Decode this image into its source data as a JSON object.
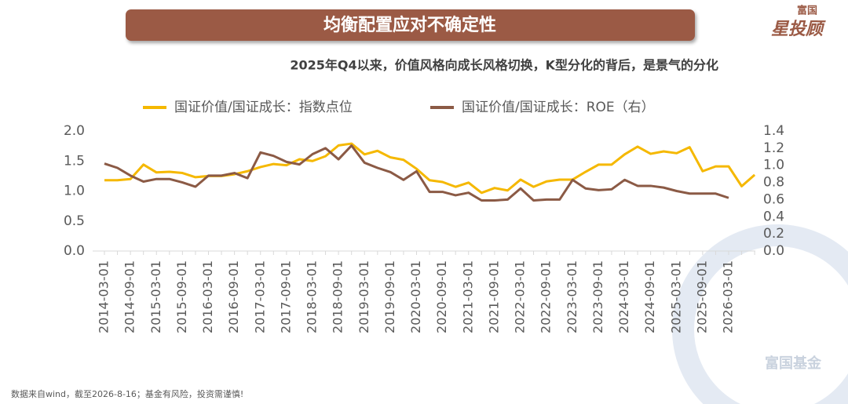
{
  "header": {
    "title": "均衡配置应对不确定性",
    "logo_top": "富国",
    "logo_main": "星投顾"
  },
  "chart_data": {
    "type": "line",
    "title": "2025年Q4以来，价值风格向成长风格切换，K型分化的背后，是景气的分化",
    "categories": [
      "2014-03-01",
      null,
      "2014-09-01",
      null,
      "2015-03-01",
      null,
      "2015-09-01",
      null,
      "2016-03-01",
      null,
      "2016-09-01",
      null,
      "2017-03-01",
      null,
      "2017-09-01",
      null,
      "2018-03-01",
      null,
      "2018-09-01",
      null,
      "2019-03-01",
      null,
      "2019-09-01",
      null,
      "2020-03-01",
      null,
      "2020-09-01",
      null,
      "2021-03-01",
      null,
      "2021-09-01",
      null,
      "2022-03-01",
      null,
      "2022-09-01",
      null,
      "2023-03-01",
      null,
      "2023-09-01",
      null,
      "2024-03-01",
      null,
      "2024-09-01",
      null,
      "2025-03-01",
      null,
      "2025-09-01",
      null,
      "2026-03-01",
      null,
      null
    ],
    "series": [
      {
        "name": "国证价值/国证成长：指数点位",
        "color": "#f5b800",
        "axis": "y",
        "values": [
          1.18,
          1.18,
          1.2,
          1.44,
          1.31,
          1.32,
          1.3,
          1.23,
          1.25,
          1.25,
          1.28,
          1.33,
          1.4,
          1.45,
          1.43,
          1.53,
          1.5,
          1.58,
          1.76,
          1.79,
          1.61,
          1.67,
          1.56,
          1.52,
          1.37,
          1.18,
          1.15,
          1.07,
          1.14,
          0.97,
          1.05,
          1.01,
          1.19,
          1.07,
          1.16,
          1.19,
          1.19,
          1.32,
          1.44,
          1.44,
          1.61,
          1.74,
          1.62,
          1.66,
          1.63,
          1.73,
          1.33,
          1.41,
          1.41,
          1.08,
          1.27
        ]
      },
      {
        "name": "国证价值/国证成长：ROE（右）",
        "color": "#8b5a45",
        "axis": "y2",
        "values": [
          1.02,
          0.97,
          0.88,
          0.81,
          0.84,
          0.84,
          0.8,
          0.75,
          0.88,
          0.88,
          0.91,
          0.85,
          1.15,
          1.11,
          1.04,
          1.01,
          1.13,
          1.2,
          1.07,
          1.23,
          1.03,
          0.97,
          0.92,
          0.83,
          0.93,
          0.69,
          0.69,
          0.65,
          0.68,
          0.59,
          0.59,
          0.6,
          0.73,
          0.59,
          0.6,
          0.6,
          0.83,
          0.73,
          0.71,
          0.72,
          0.83,
          0.76,
          0.76,
          0.74,
          0.7,
          0.67,
          0.67,
          0.67,
          0.62,
          null,
          null
        ]
      }
    ],
    "ylim": [
      0,
      2.0
    ],
    "yticks": [
      {
        "value": 0,
        "label": "0.0"
      },
      0.5,
      {
        "value": 1,
        "label": "1.0"
      },
      1.5,
      {
        "value": 2,
        "label": "2.0"
      }
    ],
    "y2lim": [
      0,
      1.4
    ],
    "y2ticks": [
      {
        "value": 0,
        "label": "0.0"
      },
      0.2,
      0.4,
      0.6,
      0.8,
      {
        "value": 1,
        "label": "1.0"
      },
      1.2,
      1.4
    ],
    "legend": "top",
    "grid": false
  },
  "footer": {
    "note": "数据来自wind，截至2026-8-16；基金有风险，投资需谨慎!",
    "watermark": "富国基金"
  }
}
